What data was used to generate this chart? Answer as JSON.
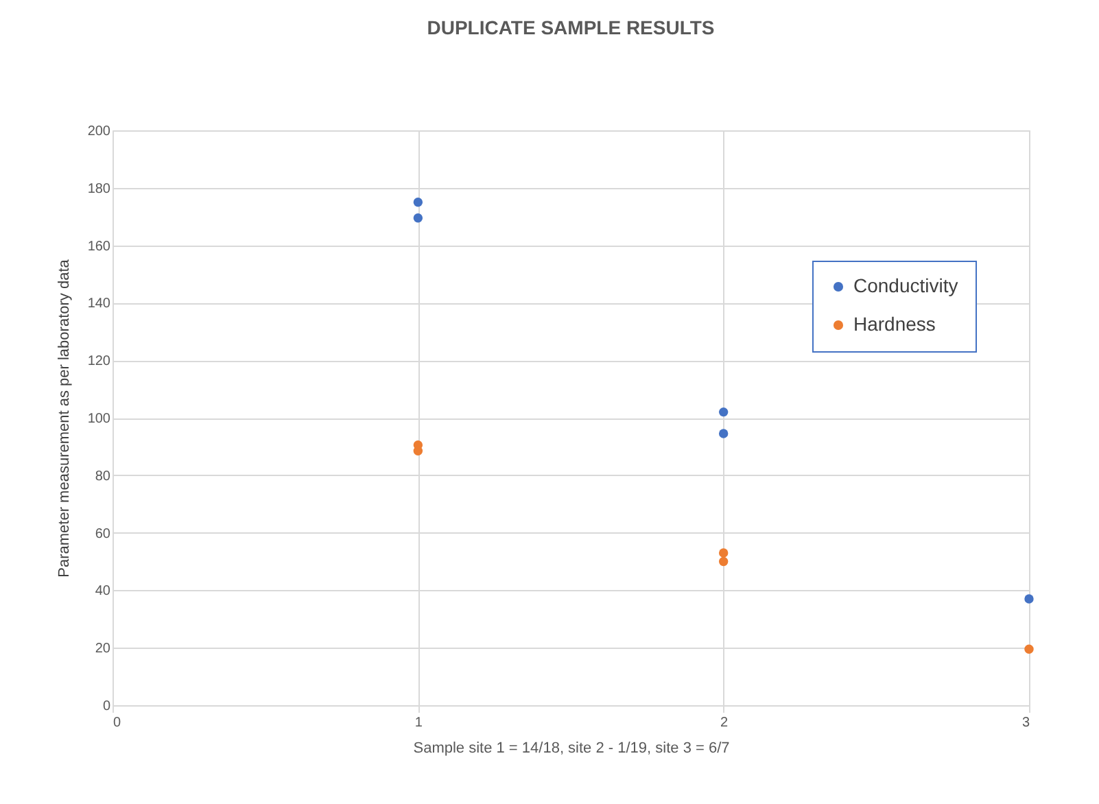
{
  "chart_data": {
    "type": "scatter",
    "title": "DUPLICATE SAMPLE RESULTS",
    "xlabel": "Sample site 1 = 14/18, site 2 - 1/19, site 3 = 6/7",
    "ylabel": "Parameter measurement as per laboratory data",
    "series": [
      {
        "name": "Conductivity",
        "color": "#4472c4",
        "x": [
          1,
          1,
          2,
          2,
          3
        ],
        "values": [
          175,
          169.5,
          102,
          94.5,
          37
        ]
      },
      {
        "name": "Hardness",
        "color": "#ed7d31",
        "x": [
          1,
          1,
          2,
          2,
          3
        ],
        "values": [
          90.5,
          88.5,
          53,
          50,
          19.5
        ]
      }
    ],
    "xlim": [
      0,
      3
    ],
    "xticks": [
      0,
      1,
      2,
      3
    ],
    "ylim": [
      0,
      200
    ],
    "yticks": [
      0,
      20,
      40,
      60,
      80,
      100,
      120,
      140,
      160,
      180,
      200
    ],
    "grid": true,
    "legend": "top right",
    "marker": "circle"
  }
}
